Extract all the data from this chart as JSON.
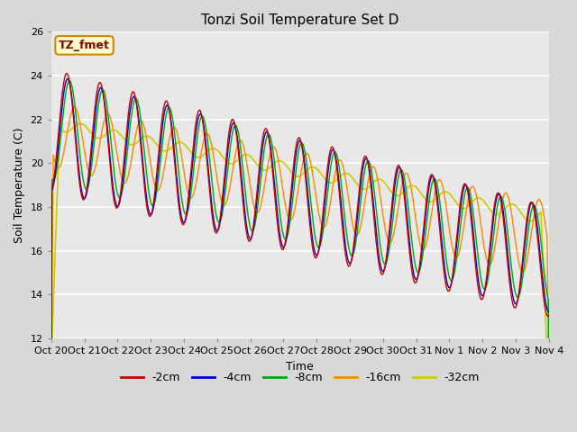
{
  "title": "Tonzi Soil Temperature Set D",
  "xlabel": "Time",
  "ylabel": "Soil Temperature (C)",
  "annotation": "TZ_fmet",
  "ylim": [
    12,
    26
  ],
  "yticks": [
    12,
    14,
    16,
    18,
    20,
    22,
    24,
    26
  ],
  "xtick_labels": [
    "Oct 20",
    "Oct 21",
    "Oct 22",
    "Oct 23",
    "Oct 24",
    "Oct 25",
    "Oct 26",
    "Oct 27",
    "Oct 28",
    "Oct 29",
    "Oct 30",
    "Oct 31",
    "Nov 1",
    "Nov 2",
    "Nov 3",
    "Nov 4"
  ],
  "series_colors": [
    "#cc0000",
    "#0000cc",
    "#00aa00",
    "#ff8800",
    "#cccc00"
  ],
  "series_labels": [
    "-2cm",
    "-4cm",
    "-8cm",
    "-16cm",
    "-32cm"
  ],
  "plot_bg_color": "#e8e8e8",
  "title_fontsize": 11,
  "axis_label_fontsize": 9,
  "tick_fontsize": 8,
  "legend_fontsize": 9,
  "n_days": 15,
  "n_points_per_day": 96
}
